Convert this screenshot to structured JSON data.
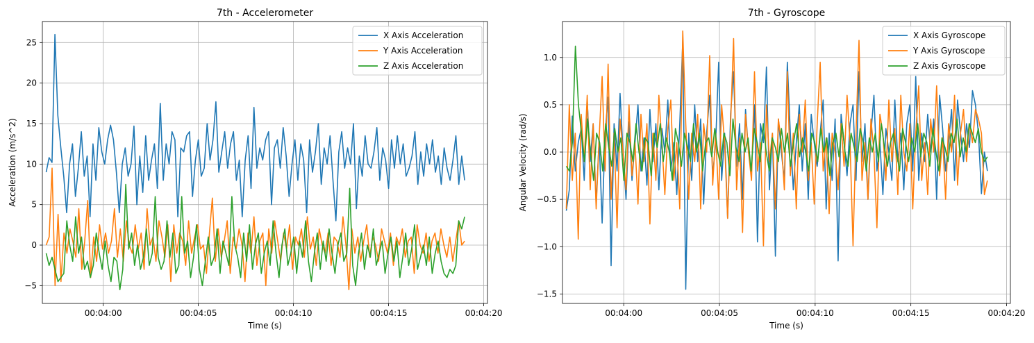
{
  "chart_data": [
    {
      "type": "line",
      "title": "7th - Accelerometer",
      "xlabel": "Time (s)",
      "ylabel": "Acceleration (m/s^2)",
      "xlim": [
        "00:03:56.8",
        "00:04:20.2"
      ],
      "ylim": [
        -7.2,
        27.6
      ],
      "x_start": "00:03:57.0",
      "x_end": "00:04:19.0",
      "x_ticks": [
        "00:04:00",
        "00:04:05",
        "00:04:10",
        "00:04:15",
        "00:04:20"
      ],
      "y_ticks": [
        -5,
        0,
        5,
        10,
        15,
        20,
        25
      ],
      "grid": true,
      "legend_position": "top-right",
      "series": [
        {
          "name": "X Axis Acceleration",
          "color": "#1f77b4",
          "values": [
            9.0,
            10.8,
            10.2,
            26.0,
            16.0,
            12.0,
            8.5,
            4.0,
            10.0,
            12.5,
            6.0,
            9.5,
            14.0,
            8.5,
            11.0,
            3.5,
            12.5,
            8.0,
            14.5,
            11.5,
            10.0,
            13.0,
            14.8,
            13.0,
            9.0,
            4.0,
            10.0,
            12.0,
            8.5,
            10.0,
            14.7,
            5.0,
            11.0,
            6.5,
            13.5,
            8.0,
            10.5,
            12.5,
            7.0,
            17.5,
            8.0,
            12.5,
            10.0,
            14.0,
            13.0,
            3.5,
            12.0,
            11.5,
            13.5,
            14.0,
            6.0,
            10.5,
            13.0,
            8.5,
            9.5,
            15.0,
            10.5,
            13.0,
            17.7,
            9.0,
            11.5,
            14.0,
            9.5,
            12.5,
            14.0,
            8.0,
            10.5,
            3.5,
            10.5,
            13.5,
            7.0,
            17.0,
            9.5,
            12.0,
            10.5,
            13.0,
            14.0,
            5.0,
            12.0,
            13.0,
            9.5,
            14.5,
            11.0,
            6.0,
            10.0,
            13.0,
            8.0,
            12.5,
            10.5,
            4.0,
            13.0,
            9.0,
            11.5,
            15.0,
            7.5,
            12.0,
            10.0,
            13.5,
            8.0,
            3.0,
            11.5,
            14.0,
            9.5,
            12.0,
            10.0,
            15.0,
            4.5,
            11.0,
            8.5,
            13.5,
            10.0,
            9.5,
            11.5,
            14.5,
            8.0,
            12.0,
            10.5,
            7.0,
            13.0,
            9.5,
            13.5,
            10.0,
            12.5,
            8.5,
            9.5,
            11.0,
            14.0,
            7.5,
            11.5,
            8.5,
            12.5,
            10.0,
            13.0,
            9.0,
            11.0,
            7.5,
            12.0,
            9.5,
            8.0,
            10.5,
            13.5,
            7.5,
            11.0,
            8.0
          ],
          "markers": [
            [
              "00:03:57.0",
              9.0
            ],
            [
              "00:03:57.1",
              10.8
            ],
            [
              "00:03:57.2",
              10.2
            ],
            [
              "00:03:57.3",
              26.0
            ],
            [
              "00:03:57.4",
              16.0
            ],
            [
              "00:04:02.5",
              17.5
            ],
            [
              "00:04:03.7",
              17.7
            ],
            [
              "00:04:05.5",
              17.0
            ],
            [
              "00:04:19.0",
              8.0
            ]
          ]
        },
        {
          "name": "Y Axis Acceleration",
          "color": "#ff7f0e",
          "values": [
            0.0,
            1.0,
            9.5,
            -5.0,
            3.8,
            -4.5,
            1.5,
            -1.0,
            2.0,
            0.5,
            -1.5,
            4.5,
            -3.0,
            0.5,
            5.5,
            -4.0,
            1.0,
            -2.0,
            2.5,
            -0.5,
            1.5,
            -1.0,
            0.5,
            4.5,
            -1.5,
            2.0,
            -2.0,
            3.0,
            0.0,
            -1.0,
            2.5,
            -0.5,
            1.5,
            -3.0,
            4.5,
            0.0,
            1.0,
            -2.0,
            3.0,
            1.0,
            -1.5,
            2.5,
            -4.5,
            2.5,
            -1.0,
            1.5,
            0.5,
            -2.5,
            3.0,
            -1.0,
            1.0,
            2.5,
            -0.5,
            0.0,
            -3.5,
            1.5,
            5.8,
            -2.0,
            2.0,
            -1.5,
            0.5,
            3.0,
            -3.5,
            1.0,
            -0.5,
            2.0,
            0.0,
            -4.5,
            1.5,
            -1.0,
            3.5,
            -2.5,
            0.5,
            1.5,
            -5.0,
            2.0,
            -1.0,
            3.0,
            0.5,
            -2.0,
            1.5,
            -0.5,
            2.5,
            -3.0,
            1.0,
            0.0,
            2.0,
            -1.5,
            3.5,
            -0.5,
            1.0,
            -2.5,
            2.0,
            0.0,
            -1.0,
            1.5,
            -2.5,
            1.0,
            0.5,
            -1.5,
            3.5,
            0.0,
            -5.5,
            2.0,
            -1.0,
            1.0,
            -2.0,
            0.5,
            2.5,
            -1.5,
            1.0,
            0.0,
            -2.0,
            2.0,
            0.5,
            -1.0,
            1.5,
            -2.5,
            1.0,
            0.0,
            2.0,
            -1.5,
            0.5,
            1.0,
            -3.5,
            2.5,
            0.0,
            -1.0,
            1.5,
            -2.0,
            0.5,
            1.5,
            -1.0,
            2.0,
            0.0,
            -1.5,
            1.0,
            -2.0,
            0.5,
            3.0,
            0.0,
            0.5
          ]
        },
        {
          "name": "Z Axis Acceleration",
          "color": "#2ca02c",
          "values": [
            -1.0,
            -2.5,
            -1.5,
            -3.0,
            -4.5,
            -4.0,
            -3.5,
            3.0,
            0.0,
            -2.0,
            3.5,
            -1.0,
            1.0,
            -3.0,
            -2.0,
            -4.0,
            -2.5,
            1.5,
            -1.0,
            -3.0,
            0.5,
            -2.5,
            -4.5,
            -1.5,
            -2.0,
            -5.5,
            -3.0,
            7.5,
            -0.5,
            1.5,
            -2.5,
            0.0,
            -3.0,
            -1.5,
            2.0,
            -2.5,
            -1.0,
            6.0,
            -1.5,
            -3.0,
            -2.0,
            3.0,
            -1.5,
            1.5,
            -3.5,
            -2.5,
            6.0,
            -1.0,
            0.5,
            -4.0,
            -1.5,
            2.5,
            -3.0,
            -5.0,
            -2.0,
            1.0,
            -2.5,
            -1.5,
            2.0,
            -3.5,
            0.5,
            -1.0,
            -2.5,
            6.0,
            0.0,
            -1.5,
            -4.0,
            1.5,
            -2.0,
            2.5,
            -3.0,
            0.0,
            1.5,
            -3.5,
            -1.0,
            0.5,
            -2.5,
            3.0,
            -1.0,
            -4.0,
            0.0,
            2.0,
            -2.5,
            -1.0,
            1.0,
            -3.5,
            0.5,
            -1.5,
            3.0,
            -2.0,
            -4.5,
            -1.0,
            1.5,
            -3.0,
            0.5,
            -2.0,
            2.0,
            -1.0,
            -3.5,
            0.0,
            1.5,
            -2.0,
            -1.0,
            7.0,
            -2.5,
            -5.0,
            -1.0,
            1.5,
            -3.0,
            0.0,
            -1.5,
            2.0,
            -2.5,
            -1.0,
            0.5,
            -3.5,
            -1.0,
            1.0,
            -2.0,
            0.5,
            -4.0,
            -1.5,
            1.5,
            -2.5,
            -0.5,
            2.5,
            -3.0,
            -1.5,
            0.0,
            -2.5,
            1.0,
            -3.5,
            -1.0,
            0.5,
            -2.0,
            -3.5,
            -4.0,
            -3.0,
            -3.5,
            -2.5,
            3.0,
            2.0,
            3.5
          ]
        }
      ]
    },
    {
      "type": "line",
      "title": "7th - Gyroscope",
      "xlabel": "Time (s)",
      "ylabel": "Angular Velocity (rad/s)",
      "xlim": [
        "00:03:56.8",
        "00:04:20.2"
      ],
      "ylim": [
        -1.6,
        1.38
      ],
      "x_start": "00:03:57.0",
      "x_end": "00:04:19.0",
      "x_ticks": [
        "00:04:00",
        "00:04:05",
        "00:04:10",
        "00:04:15",
        "00:04:20"
      ],
      "y_ticks": [
        -1.5,
        -1.0,
        -0.5,
        0.0,
        0.5,
        1.0
      ],
      "grid": true,
      "legend_position": "top-right",
      "series": [
        {
          "name": "X Axis Gyroscope",
          "color": "#1f77b4",
          "values": [
            -0.62,
            -0.4,
            0.38,
            -0.2,
            0.1,
            0.25,
            -0.3,
            0.55,
            -0.1,
            0.3,
            -0.55,
            0.15,
            -0.75,
            0.2,
            0.58,
            -1.2,
            0.3,
            -0.2,
            0.62,
            0.0,
            -0.5,
            0.32,
            -0.3,
            0.1,
            0.5,
            -0.2,
            0.15,
            -0.35,
            0.45,
            -0.1,
            0.3,
            -0.4,
            0.25,
            0.0,
            0.55,
            -0.2,
            0.1,
            -0.45,
            0.3,
            1.18,
            -1.45,
            0.2,
            -0.3,
            0.5,
            -0.1,
            0.35,
            -0.55,
            0.2,
            0.6,
            -0.25,
            0.1,
            0.95,
            -0.3,
            0.2,
            -0.7,
            0.4,
            0.85,
            -0.15,
            0.3,
            -0.5,
            0.45,
            0.0,
            -0.2,
            0.5,
            -0.95,
            0.3,
            0.1,
            0.9,
            -0.4,
            0.2,
            -1.1,
            0.35,
            0.0,
            -0.3,
            0.95,
            0.2,
            -0.4,
            0.1,
            0.5,
            -0.2,
            0.3,
            -0.5,
            0.4,
            0.1,
            -0.15,
            0.2,
            0.55,
            -0.6,
            0.2,
            -0.3,
            0.35,
            -1.15,
            0.4,
            0.1,
            -0.25,
            0.3,
            0.5,
            -0.3,
            0.85,
            -0.1,
            0.3,
            -0.5,
            0.2,
            0.6,
            -0.2,
            0.1,
            -0.45,
            0.25,
            0.0,
            -0.3,
            0.55,
            -0.1,
            0.2,
            -0.4,
            0.3,
            0.5,
            -0.2,
            0.8,
            -0.3,
            0.2,
            -0.1,
            0.4,
            0.0,
            0.35,
            -0.5,
            0.6,
            0.25,
            -0.2,
            0.1,
            0.45,
            -0.3,
            0.55,
            0.2,
            -0.1,
            0.3,
            0.05,
            0.65,
            0.5,
            0.2,
            -0.44,
            0.0,
            -0.2
          ],
          "markers": [
            [
              "00:04:01.9",
              1.18
            ],
            [
              "00:04:02.0",
              -1.45
            ],
            [
              "00:03:58.5",
              -1.2
            ]
          ]
        },
        {
          "name": "Y Axis Gyroscope",
          "color": "#ff7f0e",
          "values": [
            -0.6,
            0.5,
            -0.3,
            0.2,
            -0.92,
            0.4,
            -0.1,
            0.6,
            -0.4,
            0.3,
            -0.6,
            0.15,
            0.8,
            -0.2,
            0.93,
            -0.5,
            0.2,
            -0.8,
            0.35,
            0.0,
            -0.4,
            0.5,
            -0.25,
            0.1,
            -0.55,
            0.4,
            -0.1,
            0.3,
            -0.76,
            0.2,
            -0.3,
            0.6,
            0.1,
            -0.45,
            0.25,
            0.55,
            -0.3,
            0.1,
            -0.6,
            1.28,
            0.3,
            -0.5,
            0.2,
            -0.1,
            0.4,
            -0.6,
            0.3,
            0.0,
            1.02,
            -0.35,
            0.2,
            -0.5,
            0.5,
            0.1,
            -0.7,
            0.3,
            1.2,
            -0.4,
            0.15,
            -0.85,
            0.4,
            0.0,
            -0.3,
            0.85,
            -0.2,
            0.1,
            -0.99,
            0.5,
            -0.1,
            0.2,
            -0.6,
            0.35,
            0.1,
            -0.4,
            0.85,
            -0.25,
            0.2,
            -0.6,
            0.4,
            0.0,
            0.55,
            -0.3,
            0.1,
            -0.55,
            0.3,
            0.95,
            -0.2,
            0.15,
            -0.65,
            0.2,
            0.0,
            -0.4,
            0.3,
            -0.15,
            0.6,
            0.1,
            -0.99,
            0.2,
            1.18,
            -0.3,
            0.1,
            -0.5,
            0.35,
            0.0,
            -0.8,
            0.4,
            0.2,
            -0.3,
            0.55,
            -0.1,
            0.25,
            -0.45,
            0.6,
            0.0,
            -0.2,
            0.3,
            -0.6,
            0.2,
            0.7,
            -0.3,
            0.1,
            -0.45,
            0.35,
            0.0,
            0.7,
            -0.25,
            0.15,
            -0.5,
            0.3,
            0.0,
            0.6,
            -0.35,
            0.2,
            0.45,
            -0.1,
            0.3,
            0.1,
            0.45,
            0.35,
            0.2,
            -0.45,
            -0.3
          ],
          "markers": [
            [
              "00:04:02.0",
              1.28
            ],
            [
              "00:04:12.3",
              1.18
            ],
            [
              "00:04:11.7",
              -0.99
            ]
          ]
        },
        {
          "name": "Z Axis Gyroscope",
          "color": "#2ca02c",
          "values": [
            -0.15,
            -0.2,
            0.1,
            1.12,
            0.5,
            0.2,
            -0.1,
            0.35,
            0.0,
            -0.3,
            0.2,
            0.1,
            -0.2,
            0.3,
            0.05,
            -0.15,
            0.25,
            0.0,
            0.15,
            -0.3,
            0.2,
            0.1,
            -0.1,
            0.3,
            0.0,
            -0.2,
            0.15,
            0.1,
            -0.25,
            0.2,
            0.05,
            0.3,
            -0.1,
            0.15,
            0.0,
            -0.3,
            0.25,
            0.1,
            -0.15,
            0.2,
            0.05,
            -0.1,
            0.3,
            0.0,
            0.2,
            -0.2,
            0.1,
            0.15,
            -0.05,
            0.25,
            0.0,
            -0.15,
            0.2,
            0.1,
            -0.25,
            0.35,
            0.05,
            -0.1,
            0.2,
            0.0,
            0.15,
            -0.2,
            0.25,
            0.1,
            -0.1,
            0.3,
            0.0,
            -0.2,
            0.15,
            0.05,
            -0.1,
            0.25,
            0.0,
            0.2,
            -0.15,
            0.1,
            0.3,
            -0.05,
            0.15,
            0.0,
            -0.2,
            0.2,
            0.1,
            -0.1,
            0.25,
            0.0,
            0.15,
            -0.25,
            0.1,
            0.2,
            -0.05,
            0.3,
            0.0,
            -0.15,
            0.2,
            0.05,
            -0.1,
            0.25,
            0.1,
            -0.2,
            0.15,
            0.0,
            0.2,
            -0.1,
            0.3,
            0.05,
            -0.15,
            0.1,
            0.2,
            0.0,
            -0.2,
            0.25,
            0.1,
            -0.1,
            0.15,
            0.0,
            0.3,
            -0.05,
            0.2,
            0.1,
            -0.15,
            0.25,
            0.0,
            -0.2,
            0.15,
            0.05,
            -0.1,
            0.2,
            0.1,
            0.35,
            -0.05,
            0.15,
            0.0,
            0.3,
            0.2,
            0.1,
            0.25,
            0.0,
            -0.1,
            -0.05
          ]
        }
      ]
    }
  ]
}
